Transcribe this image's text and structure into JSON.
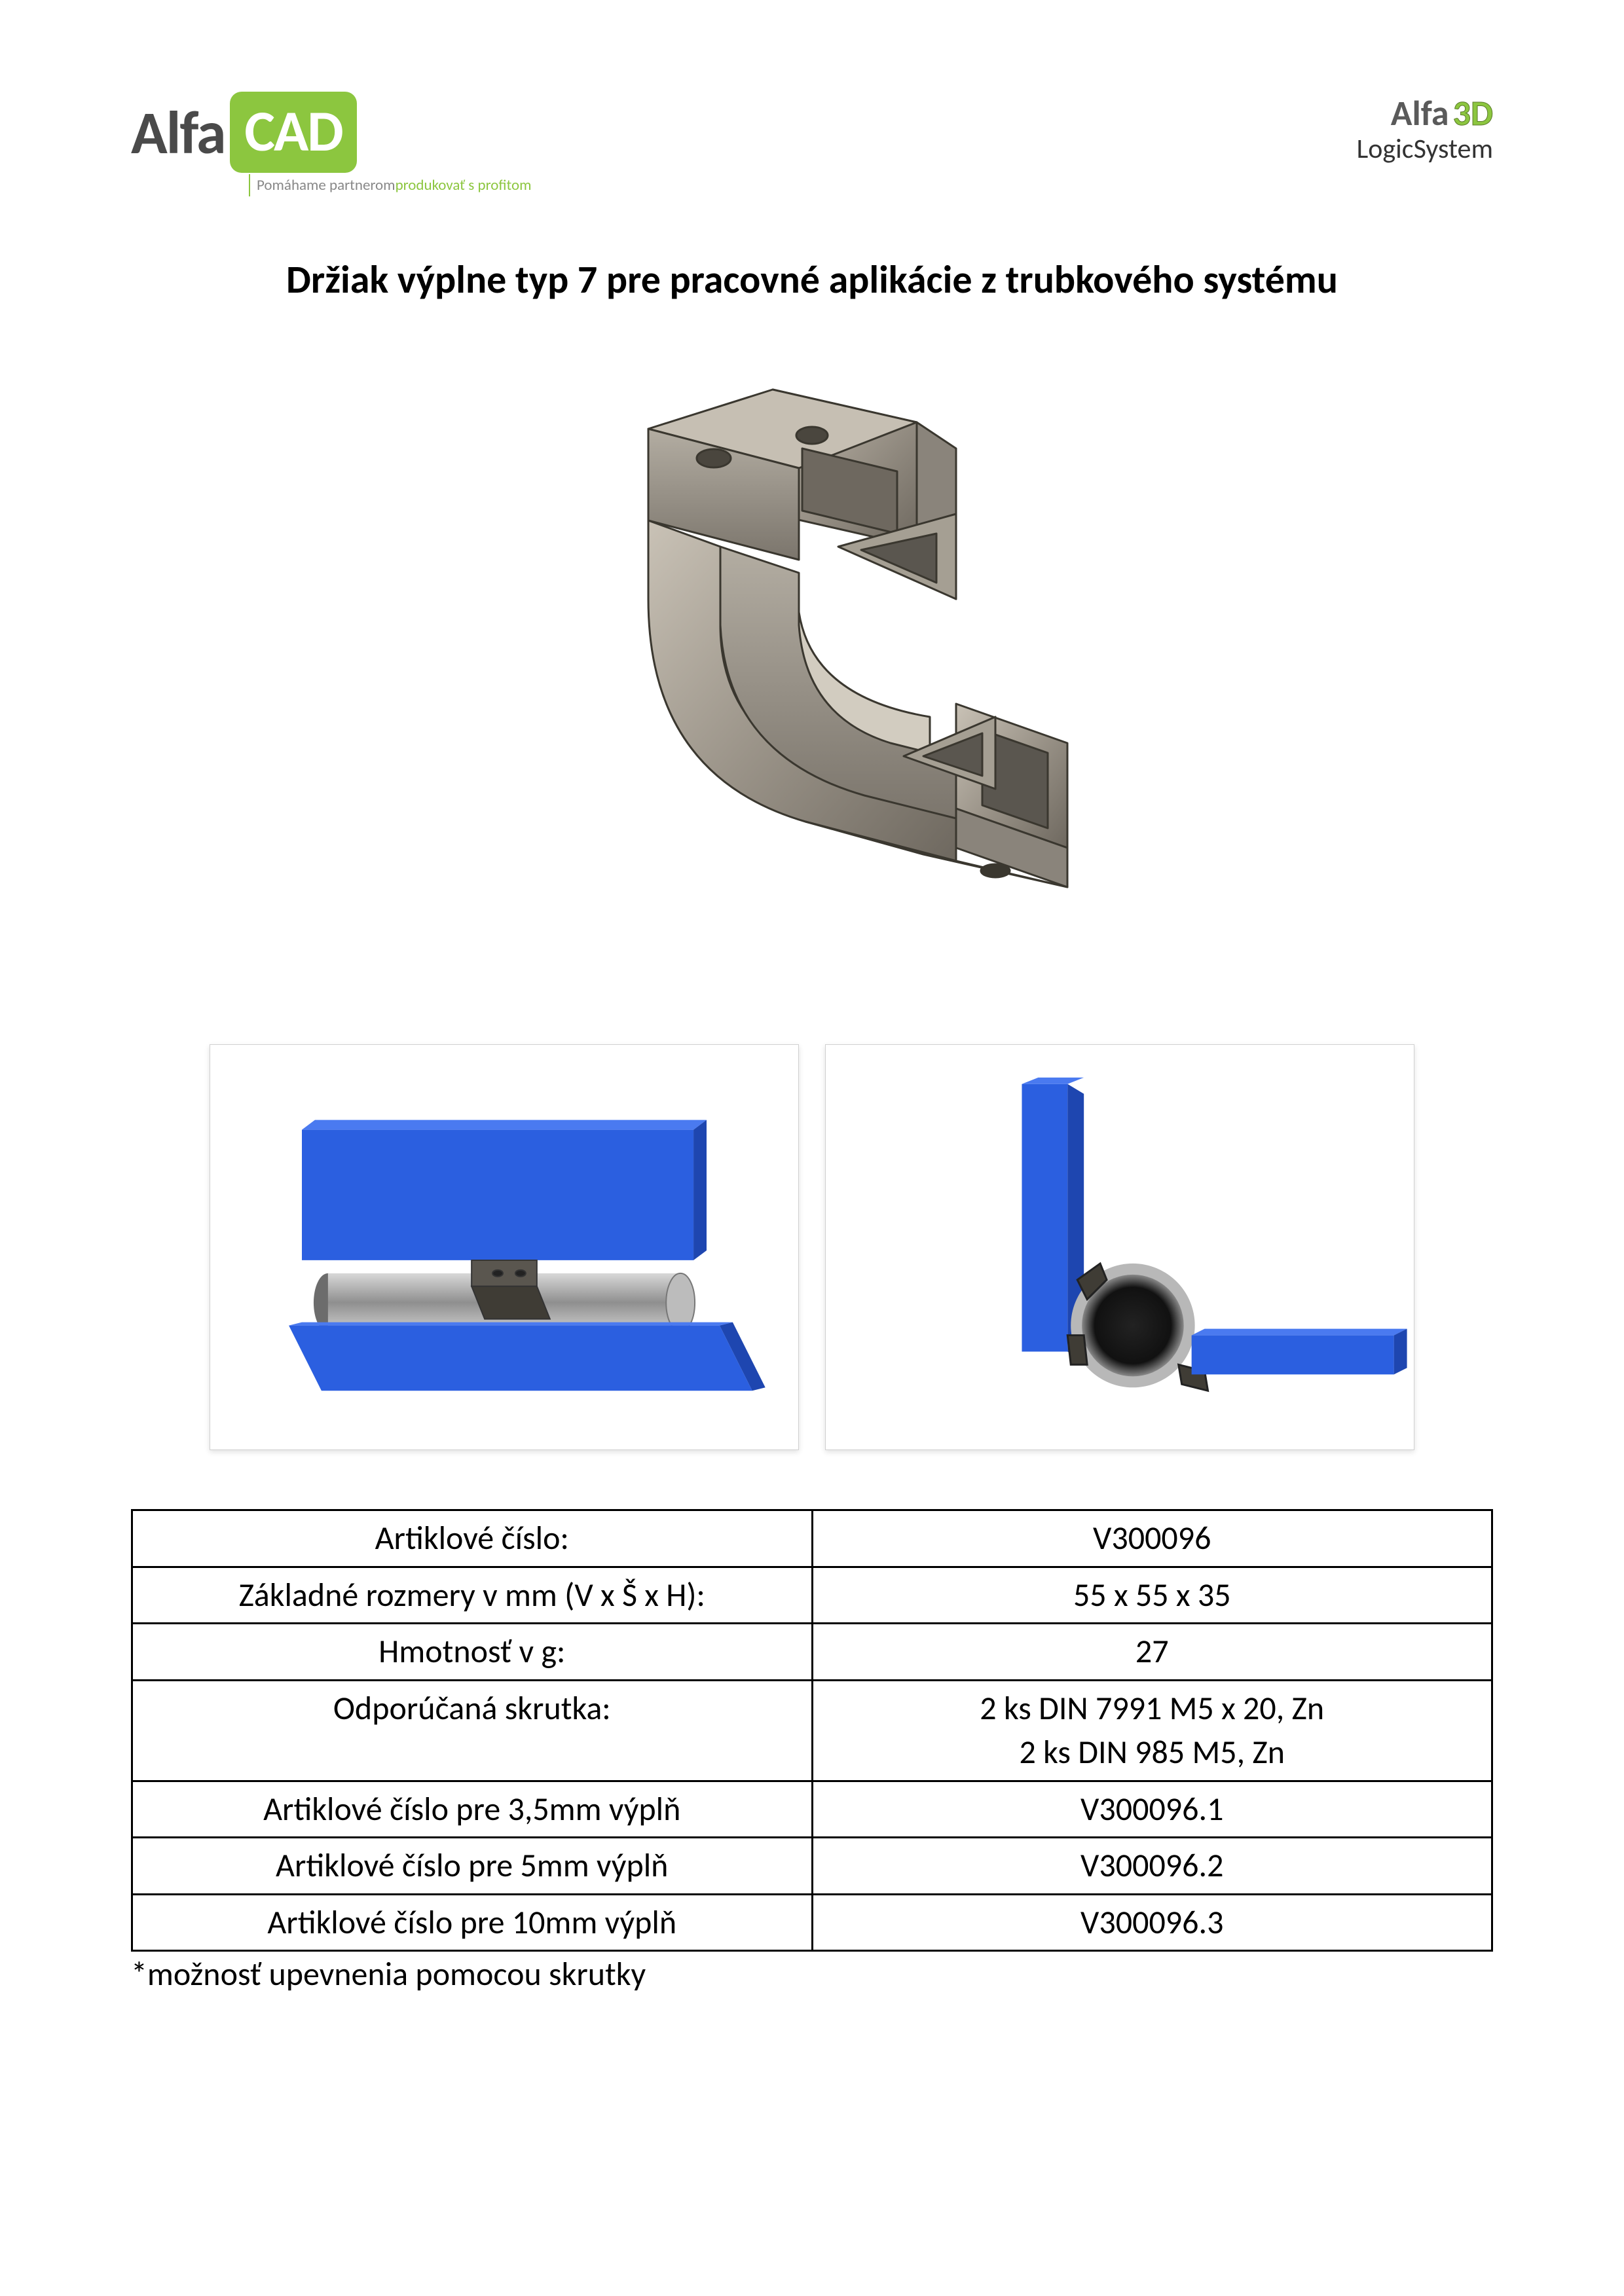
{
  "header": {
    "logo_left": {
      "prefix": "Alfa",
      "box": "CAD",
      "tagline_grey": "Pomáhame partnerom ",
      "tagline_green": "produkovať s profitom"
    },
    "logo_right": {
      "prefix": "Alfa",
      "suffix": "3D",
      "sub": "LogicSystem"
    }
  },
  "title": "Držiak výplne typ 7 pre pracovné aplikácie z trubkového systému",
  "colors": {
    "accent_green": "#8cc63f",
    "panel_blue": "#2b5fe0",
    "metal_light": "#b9b2a8",
    "metal_mid": "#8a847b",
    "metal_dark": "#5a564f",
    "tube_grey": "#9a9a9a",
    "border": "#000000",
    "thumb_border": "#d0d0d0"
  },
  "table": {
    "rows": [
      {
        "label": "Artiklové číslo:",
        "value": "V300096"
      },
      {
        "label": "Základné rozmery v mm (V x Š x H):",
        "value": "55 x 55 x 35"
      },
      {
        "label": "Hmotnosť v g:",
        "value": "27"
      },
      {
        "label": "Odporúčaná skrutka:",
        "value": "2 ks DIN 7991 M5 x 20, Zn\n2 ks DIN 985 M5, Zn"
      },
      {
        "label": "Artiklové číslo pre 3,5mm výplň",
        "value": "V300096.1"
      },
      {
        "label": "Artiklové číslo pre 5mm výplň",
        "value": "V300096.2"
      },
      {
        "label": "Artiklové číslo pre 10mm výplň",
        "value": "V300096.3"
      }
    ]
  },
  "footnote": "*možnosť upevnenia pomocou skrutky"
}
